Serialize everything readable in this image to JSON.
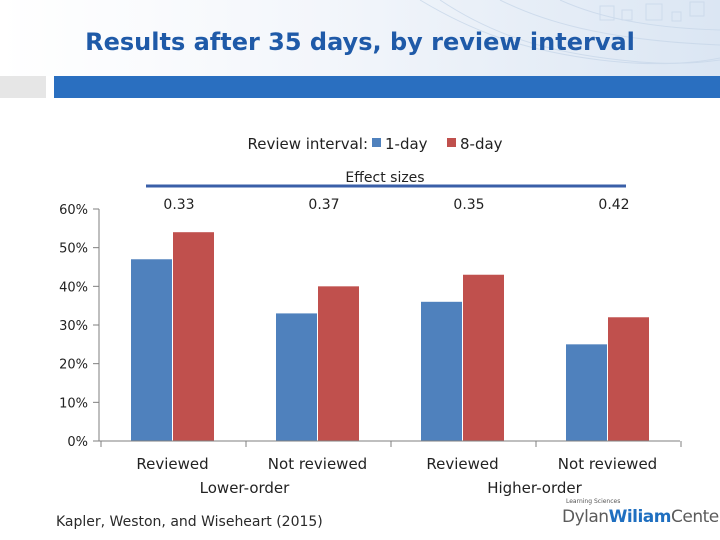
{
  "slide": {
    "title": "Results after 35 days, by review interval",
    "source": "Kapler, Weston, and Wiseheart (2015)",
    "brand_small": "Learning Sciences",
    "brand_name_a": "Dylan",
    "brand_name_b": "Wiliam",
    "brand_name_c": "Center"
  },
  "chart_data": {
    "type": "bar",
    "categories": [
      "Reviewed",
      "Not reviewed",
      "Reviewed",
      "Not reviewed"
    ],
    "groups": [
      {
        "label": "Lower-order",
        "categories": [
          0,
          1
        ]
      },
      {
        "label": "Higher-order",
        "categories": [
          2,
          3
        ]
      }
    ],
    "legend_prefix": "Review interval:",
    "legend_placement": "top-center",
    "series": [
      {
        "name": "1-day",
        "values": [
          47,
          33,
          36,
          25
        ],
        "color": "#4f81bd"
      },
      {
        "name": "8-day",
        "values": [
          54,
          40,
          43,
          32
        ],
        "color": "#c0504d"
      }
    ],
    "annotation_header": "Effect sizes",
    "effect_sizes": [
      "0.33",
      "0.37",
      "0.35",
      "0.42"
    ],
    "yticks": [
      0,
      10,
      20,
      30,
      40,
      50,
      60
    ],
    "ytick_labels": [
      "0%",
      "10%",
      "20%",
      "30%",
      "40%",
      "50%",
      "60%"
    ],
    "ylim": [
      0,
      60
    ],
    "grid": false,
    "colors": {
      "title": "#1f5aa8",
      "header_bar": "#2a6fc0",
      "bracket_line": "#3a5fa8"
    }
  }
}
